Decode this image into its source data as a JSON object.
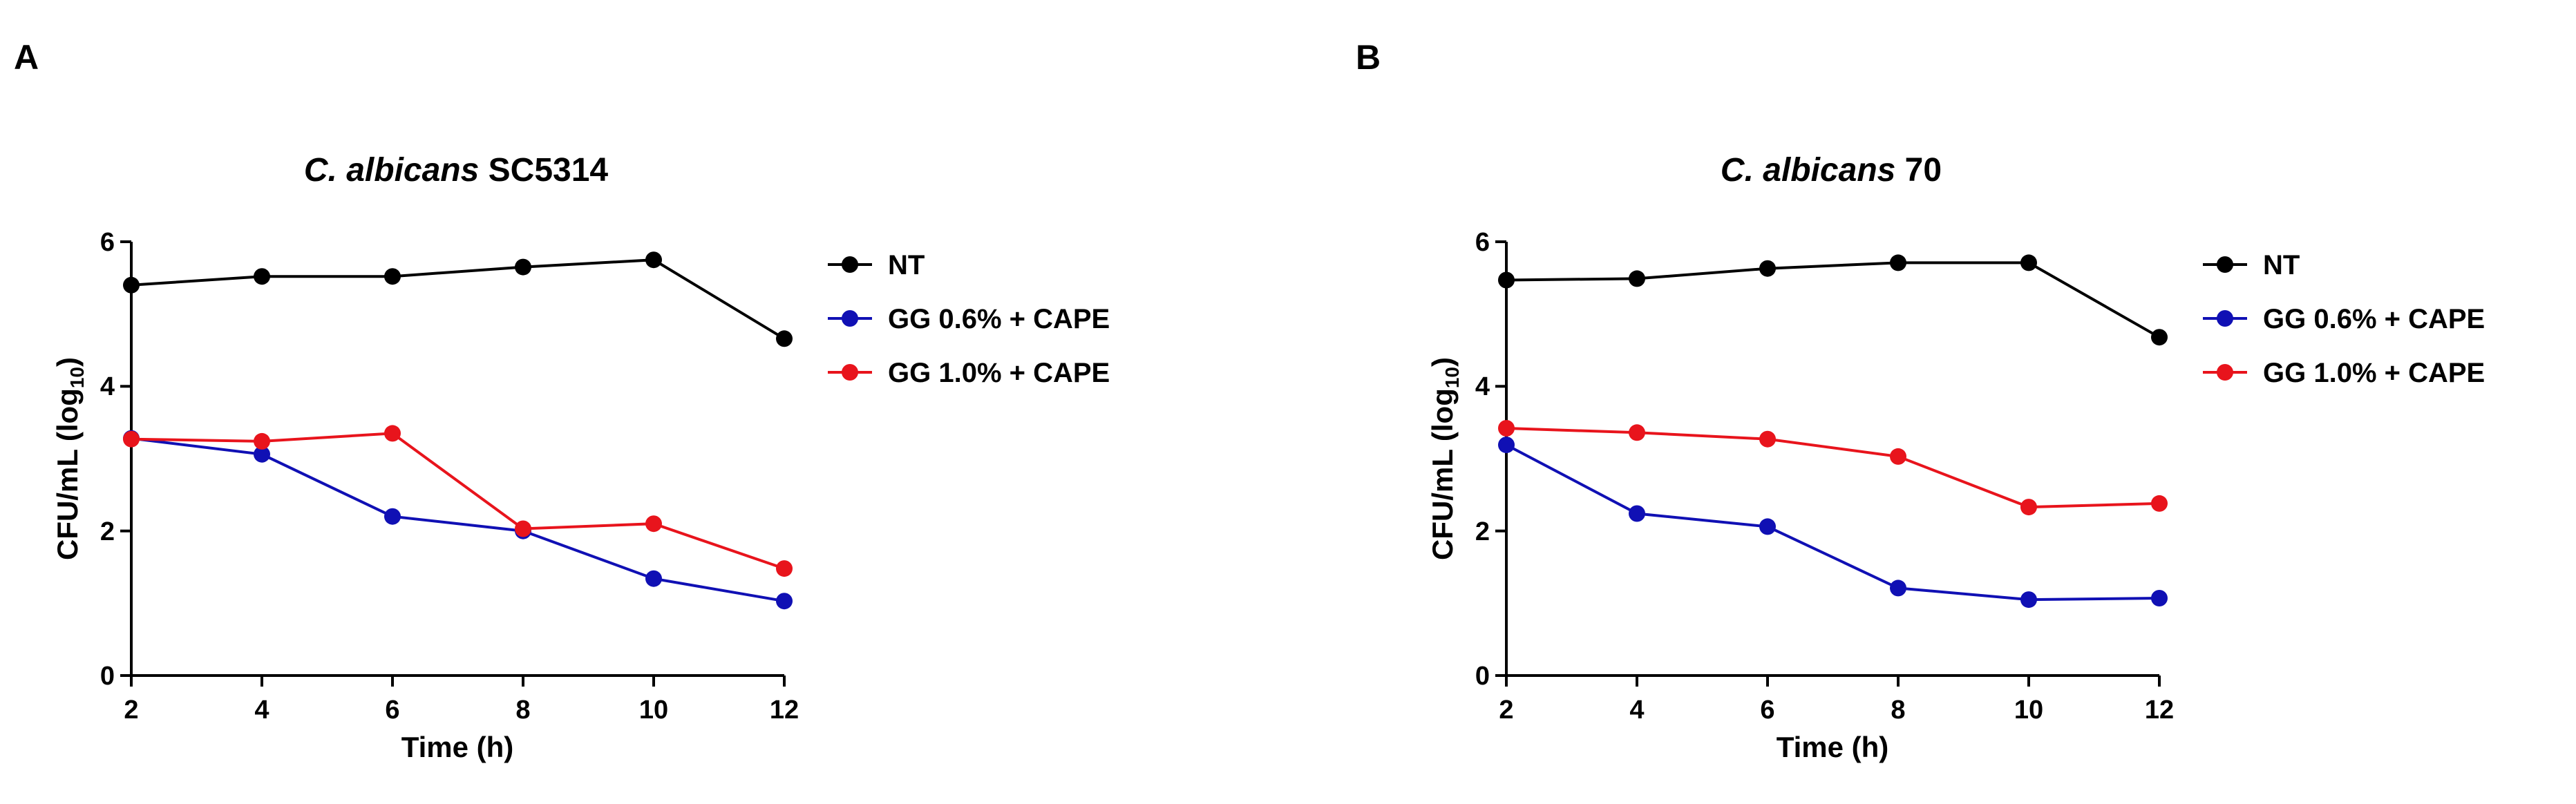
{
  "chart_data": [
    {
      "panel": "A",
      "type": "line",
      "title": {
        "italic": "C. albicans",
        "rest": " SC5314"
      },
      "xlabel": "Time (h)",
      "ylabel": "CFU/mL (log",
      "ylabel_sub": "10",
      "ylabel_close": ")",
      "x": [
        2,
        4,
        6,
        8,
        10,
        12
      ],
      "xticks": [
        "2",
        "4",
        "6",
        "8",
        "10",
        "12"
      ],
      "yticks": [
        "0",
        "2",
        "4",
        "6"
      ],
      "xlim": [
        2,
        12
      ],
      "ylim": [
        0,
        6
      ],
      "series": [
        {
          "name": "NT",
          "color": "#000000",
          "values": [
            5.4,
            5.52,
            5.52,
            5.65,
            5.75,
            4.66
          ]
        },
        {
          "name": "GG 0.6% + CAPE",
          "color": "#1010b4",
          "values": [
            3.28,
            3.06,
            2.2,
            2.0,
            1.34,
            1.03
          ]
        },
        {
          "name": "GG 1.0% + CAPE",
          "color": "#e8141c",
          "values": [
            3.27,
            3.24,
            3.35,
            2.03,
            2.1,
            1.48
          ]
        }
      ]
    },
    {
      "panel": "B",
      "type": "line",
      "title": {
        "italic": "C. albicans",
        "rest": " 70"
      },
      "xlabel": "Time (h)",
      "ylabel": "CFU/mL (log",
      "ylabel_sub": "10",
      "ylabel_close": ")",
      "x": [
        2,
        4,
        6,
        8,
        10,
        12
      ],
      "xticks": [
        "2",
        "4",
        "6",
        "8",
        "10",
        "12"
      ],
      "yticks": [
        "0",
        "2",
        "4",
        "6"
      ],
      "xlim": [
        2,
        12
      ],
      "ylim": [
        0,
        6
      ],
      "series": [
        {
          "name": "NT",
          "color": "#000000",
          "values": [
            5.47,
            5.49,
            5.63,
            5.71,
            5.71,
            4.68
          ]
        },
        {
          "name": "GG 0.6% + CAPE",
          "color": "#1010b4",
          "values": [
            3.19,
            2.24,
            2.06,
            1.21,
            1.05,
            1.07
          ]
        },
        {
          "name": "GG 1.0% + CAPE",
          "color": "#e8141c",
          "values": [
            3.42,
            3.36,
            3.27,
            3.03,
            2.33,
            2.38
          ]
        }
      ]
    }
  ]
}
